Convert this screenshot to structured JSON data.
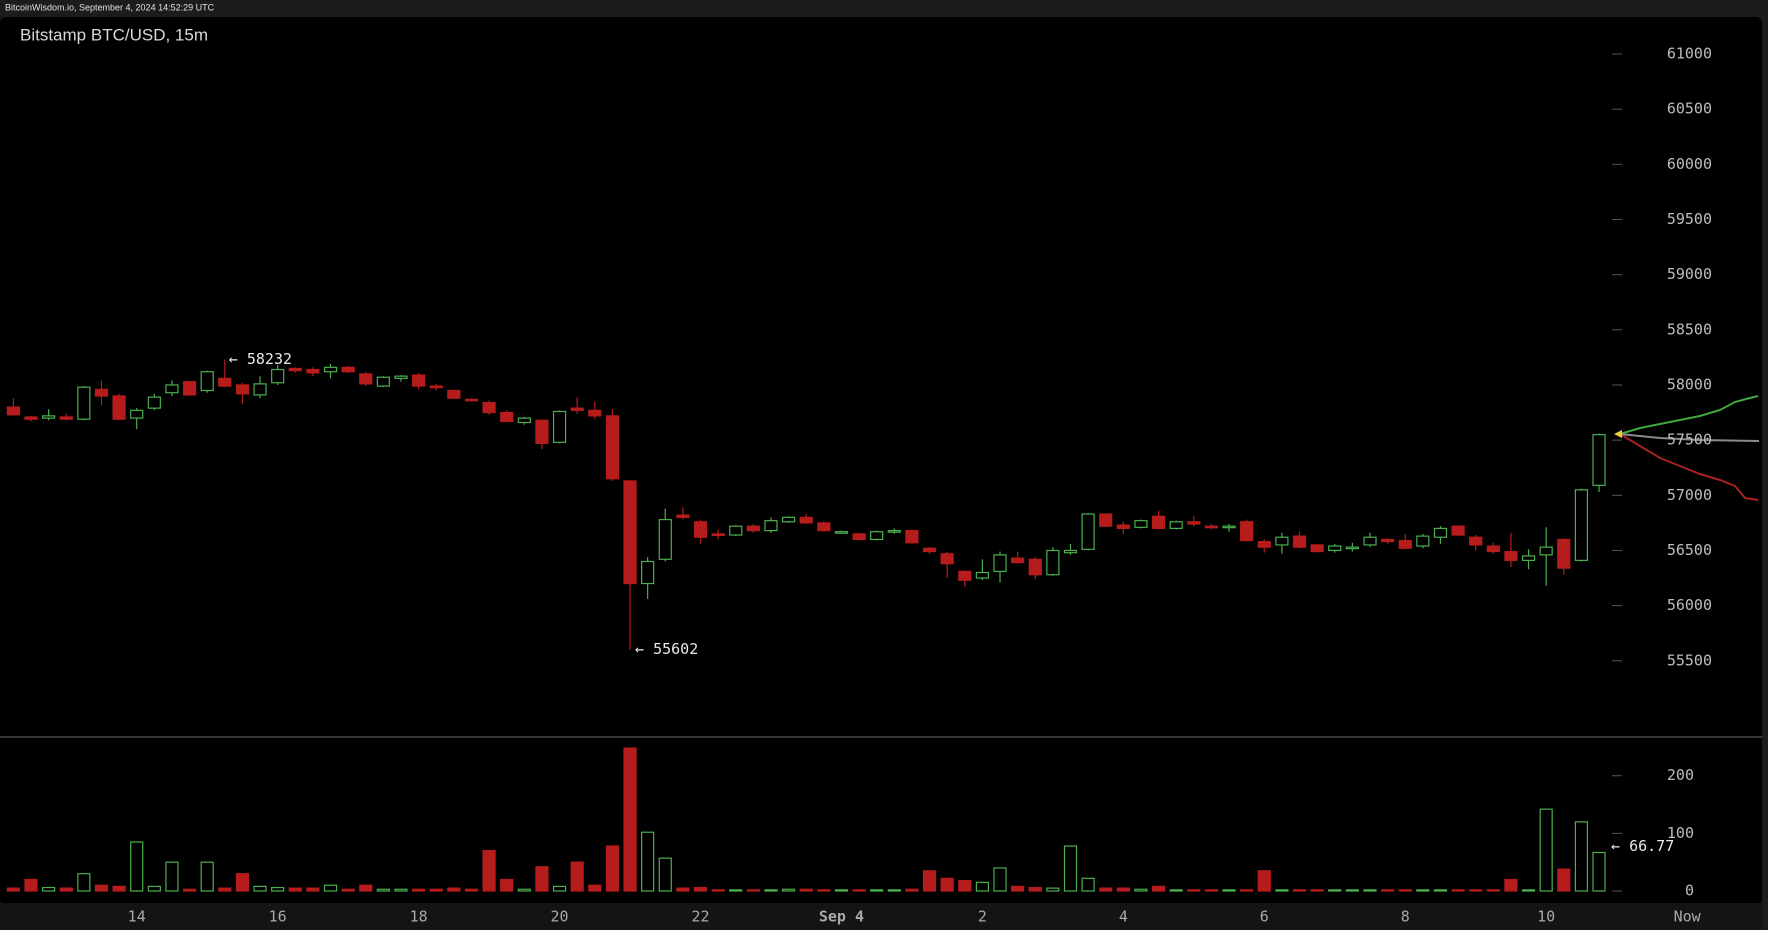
{
  "header": "BitcoinWisdom.io, September 4, 2024 14:52:29 UTC",
  "chart_data": {
    "type": "candlestick",
    "title": "Bitstamp BTC/USD, 15m",
    "up_color": "#4caf50",
    "down_color": "#b71c1c",
    "grid": false,
    "x": [
      12.25,
      12.5,
      12.75,
      13,
      13.25,
      13.5,
      13.75,
      14,
      14.25,
      14.5,
      14.75,
      15,
      15.25,
      15.5,
      15.75,
      16,
      16.25,
      16.5,
      16.75,
      17,
      17.25,
      17.5,
      17.75,
      18,
      18.25,
      18.5,
      18.75,
      19,
      19.25,
      19.5,
      19.75,
      20,
      20.25,
      20.5,
      20.75,
      21,
      21.25,
      21.5,
      21.75,
      22,
      22.25,
      22.5,
      22.75,
      23,
      23.25,
      23.5,
      23.75,
      24,
      24.25,
      24.5,
      24.75,
      25,
      25.25,
      25.5,
      25.75,
      26,
      26.25,
      26.5,
      26.75,
      27,
      27.25,
      27.5,
      27.75,
      28,
      28.25,
      28.5,
      28.75,
      29,
      29.25,
      29.5,
      29.75,
      30,
      30.25,
      30.5,
      30.75,
      31,
      31.25,
      31.5,
      31.75,
      32,
      32.25,
      32.5,
      32.75,
      33,
      33.25,
      33.5,
      33.75,
      34,
      34.25,
      34.5,
      34.75
    ],
    "open": [
      57800,
      57710,
      57700,
      57710,
      57690,
      57960,
      57900,
      57700,
      57790,
      57930,
      58030,
      57950,
      58060,
      58000,
      57910,
      58020,
      58150,
      58140,
      58120,
      58160,
      58100,
      57990,
      58060,
      58090,
      57990,
      57950,
      57870,
      57840,
      57750,
      57660,
      57680,
      57480,
      57790,
      57770,
      57720,
      57130,
      56200,
      56420,
      56820,
      56760,
      56650,
      56640,
      56720,
      56680,
      56760,
      56800,
      56750,
      56660,
      56650,
      56600,
      56670,
      56680,
      56520,
      56470,
      56310,
      56250,
      56310,
      56430,
      56420,
      56280,
      56480,
      56510,
      56830,
      56730,
      56710,
      56810,
      56700,
      56760,
      56720,
      56710,
      56760,
      56580,
      56550,
      56630,
      56550,
      56500,
      56520,
      56550,
      56600,
      56590,
      56540,
      56620,
      56720,
      56620,
      56540,
      56490,
      56410,
      56460,
      56600,
      56410,
      57090
    ],
    "high": [
      57880,
      57720,
      57780,
      57740,
      57990,
      58040,
      57920,
      57790,
      57920,
      58040,
      58040,
      58130,
      58232,
      58020,
      58080,
      58180,
      58160,
      58160,
      58190,
      58170,
      58120,
      58080,
      58090,
      58110,
      58010,
      57960,
      57880,
      57860,
      57770,
      57710,
      57690,
      57770,
      57890,
      57850,
      57780,
      57140,
      56440,
      56880,
      56890,
      56780,
      56690,
      56730,
      56740,
      56800,
      56810,
      56830,
      56760,
      56680,
      56660,
      56680,
      56700,
      56690,
      56530,
      56490,
      56320,
      56420,
      56490,
      56490,
      56440,
      56530,
      56560,
      56840,
      56840,
      56760,
      56780,
      56860,
      56770,
      56810,
      56740,
      56740,
      56780,
      56600,
      56660,
      56670,
      56560,
      56560,
      56570,
      56660,
      56610,
      56650,
      56650,
      56720,
      56730,
      56640,
      56570,
      56660,
      56510,
      56710,
      56610,
      57060,
      57560
    ],
    "low": [
      57720,
      57670,
      57680,
      57680,
      57680,
      57820,
      57680,
      57600,
      57770,
      57900,
      57900,
      57930,
      57980,
      57830,
      57880,
      58000,
      58110,
      58080,
      58060,
      58110,
      57990,
      57980,
      58030,
      57960,
      57950,
      57870,
      57850,
      57730,
      57660,
      57640,
      57420,
      57470,
      57740,
      57690,
      57130,
      55602,
      56060,
      56400,
      56780,
      56560,
      56600,
      56630,
      56660,
      56660,
      56750,
      56740,
      56670,
      56660,
      56590,
      56590,
      56650,
      56560,
      56470,
      56250,
      56170,
      56230,
      56210,
      56380,
      56240,
      56270,
      56460,
      56500,
      56710,
      56650,
      56700,
      56690,
      56690,
      56720,
      56690,
      56670,
      56580,
      56480,
      56470,
      56520,
      56480,
      56480,
      56490,
      56530,
      56560,
      56510,
      56520,
      56560,
      56630,
      56500,
      56470,
      56350,
      56330,
      56180,
      56280,
      56400,
      57030
    ],
    "close": [
      57730,
      57690,
      57720,
      57690,
      57980,
      57900,
      57690,
      57770,
      57890,
      58000,
      57910,
      58120,
      57990,
      57920,
      58010,
      58140,
      58130,
      58110,
      58160,
      58120,
      58010,
      58070,
      58080,
      57990,
      57980,
      57880,
      57860,
      57750,
      57670,
      57700,
      57470,
      57760,
      57770,
      57720,
      57150,
      56200,
      56400,
      56780,
      56800,
      56620,
      56640,
      56720,
      56680,
      56770,
      56800,
      56750,
      56680,
      56670,
      56600,
      56670,
      56680,
      56570,
      56490,
      56380,
      56230,
      56300,
      56460,
      56390,
      56280,
      56500,
      56500,
      56830,
      56720,
      56700,
      56770,
      56700,
      56760,
      56740,
      56710,
      56720,
      56590,
      56530,
      56620,
      56530,
      56490,
      56540,
      56530,
      56620,
      56580,
      56520,
      56630,
      56700,
      56640,
      56550,
      56490,
      56410,
      56450,
      56530,
      56340,
      57050,
      57550
    ],
    "volume": [
      5,
      20,
      6,
      5,
      30,
      10,
      8,
      85,
      8,
      50,
      3,
      50,
      5,
      30,
      8,
      6,
      5,
      5,
      10,
      3,
      10,
      3,
      3,
      3,
      3,
      5,
      3,
      70,
      20,
      3,
      42,
      8,
      50,
      10,
      78,
      248,
      102,
      57,
      5,
      6,
      2,
      2,
      2,
      2,
      3,
      3,
      2,
      2,
      2,
      2,
      2,
      3,
      35,
      22,
      18,
      15,
      40,
      8,
      6,
      5,
      78,
      22,
      5,
      5,
      3,
      8,
      2,
      2,
      2,
      2,
      2,
      35,
      2,
      2,
      2,
      2,
      2,
      2,
      2,
      2,
      2,
      2,
      2,
      2,
      2,
      20,
      2,
      142,
      38,
      120,
      66.77
    ],
    "annotations": [
      "← 58232",
      "← 55602",
      "← 66.77"
    ],
    "xlim": [
      12.06,
      37.02
    ],
    "xticks": [
      14,
      16,
      18,
      20,
      22,
      {
        "value": 24,
        "label": "Sep 4"
      },
      {
        "value": 26,
        "label": "2"
      },
      {
        "value": 28,
        "label": "4"
      },
      {
        "value": 30,
        "label": "6"
      },
      {
        "value": 32,
        "label": "8"
      },
      {
        "value": 34,
        "label": "10"
      },
      {
        "value": 36,
        "label": "Now"
      }
    ],
    "ylim": [
      54800,
      61350
    ],
    "yticks": [
      55500,
      56000,
      56500,
      57000,
      57500,
      58000,
      58500,
      59000,
      59500,
      60000,
      60500,
      61000
    ],
    "volume_ylim": [
      0,
      262
    ],
    "volume_yticks": [
      0,
      100,
      200
    ]
  }
}
